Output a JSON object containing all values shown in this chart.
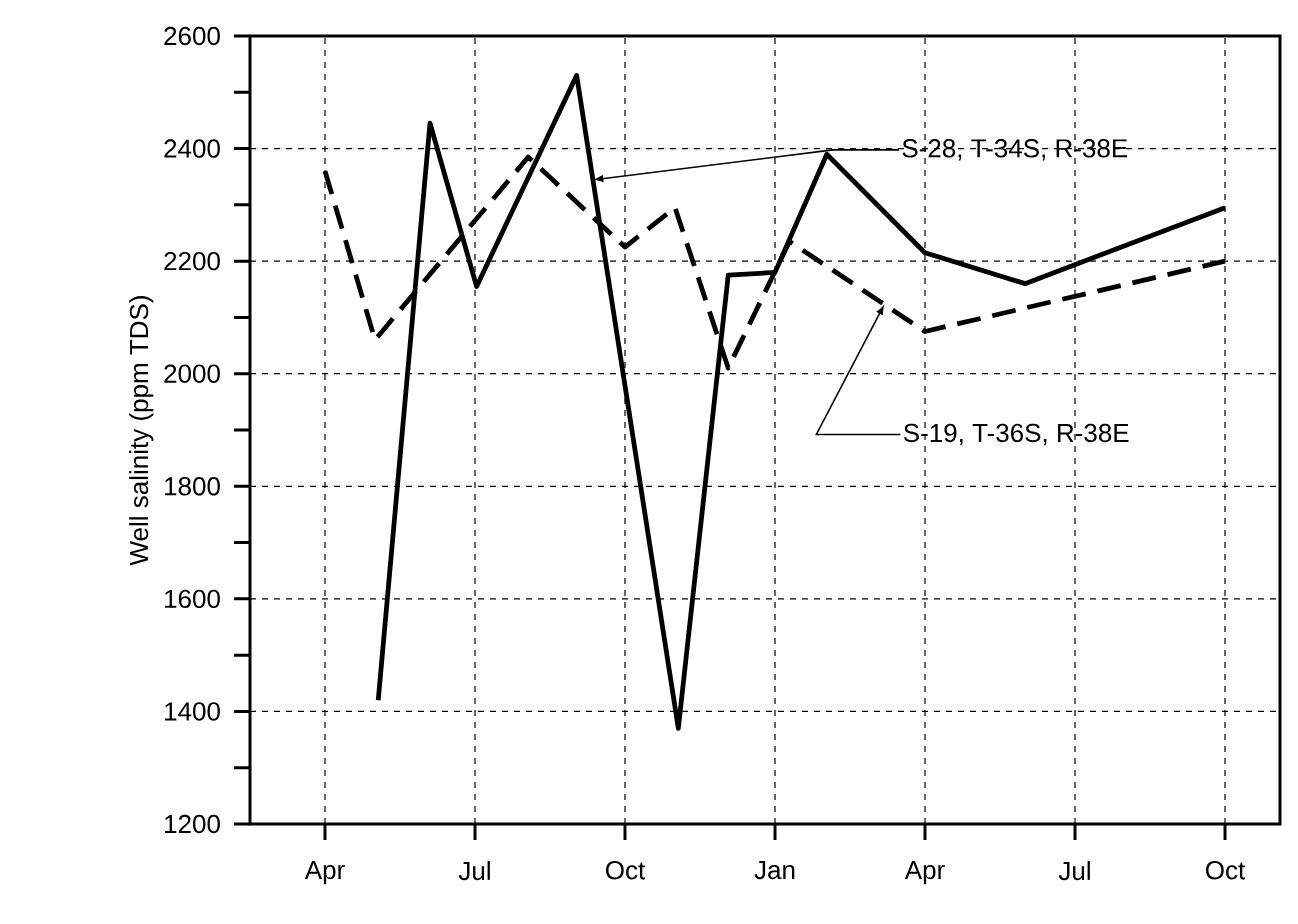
{
  "chart_data": {
    "type": "line",
    "ylabel": "Well salinity (ppm TDS)",
    "series": [
      {
        "name": "S-28, T-34S, R-38E",
        "color": "#000000",
        "line_style": "solid",
        "x": [
          "2000-05-03",
          "2000-06-04",
          "2000-07-02",
          "2000-09-02",
          "2000-11-03",
          "2000-12-03",
          "2001-01-01",
          "2001-02-02",
          "2001-04-01",
          "2001-06-01",
          "2001-10-01"
        ],
        "values": [
          1420,
          2445,
          2155,
          2530,
          1370,
          2175,
          2180,
          2390,
          2215,
          2160,
          2295
        ]
      },
      {
        "name": "S-19, T-36S, R-38E",
        "color": "#000000",
        "line_style": "dashed",
        "x": [
          "2000-04-01",
          "2000-05-01",
          "2000-08-03",
          "2000-10-01",
          "2000-11-01",
          "2000-12-03",
          "2001-01-10",
          "2001-04-01",
          "2001-10-01"
        ],
        "values": [
          2360,
          2060,
          2385,
          2225,
          2295,
          2010,
          2235,
          2075,
          2200
        ]
      }
    ],
    "xlim": [
      "2000-02-15",
      "2001-11-04"
    ],
    "xticks": [
      {
        "value": "2000-04-01",
        "label": "Apr"
      },
      {
        "value": "2000-07-01",
        "label": "Jul"
      },
      {
        "value": "2000-10-01",
        "label": "Oct"
      },
      {
        "value": "2001-01-01",
        "label": "Jan"
      },
      {
        "value": "2001-04-01",
        "label": "Apr"
      },
      {
        "value": "2001-07-01",
        "label": "Jul"
      },
      {
        "value": "2001-10-01",
        "label": "Oct"
      }
    ],
    "ylim": [
      1200,
      2600
    ],
    "yticks": [
      1200,
      {
        "value": 1300,
        "label": null
      },
      1400,
      {
        "value": 1500,
        "label": null
      },
      1600,
      {
        "value": 1700,
        "label": null
      },
      1800,
      {
        "value": 1900,
        "label": null
      },
      2000,
      {
        "value": 2100,
        "label": null
      },
      2200,
      {
        "value": 2300,
        "label": null
      },
      2400,
      {
        "value": 2500,
        "label": null
      },
      2600
    ],
    "grid": true,
    "legend": false,
    "marker": "none"
  }
}
